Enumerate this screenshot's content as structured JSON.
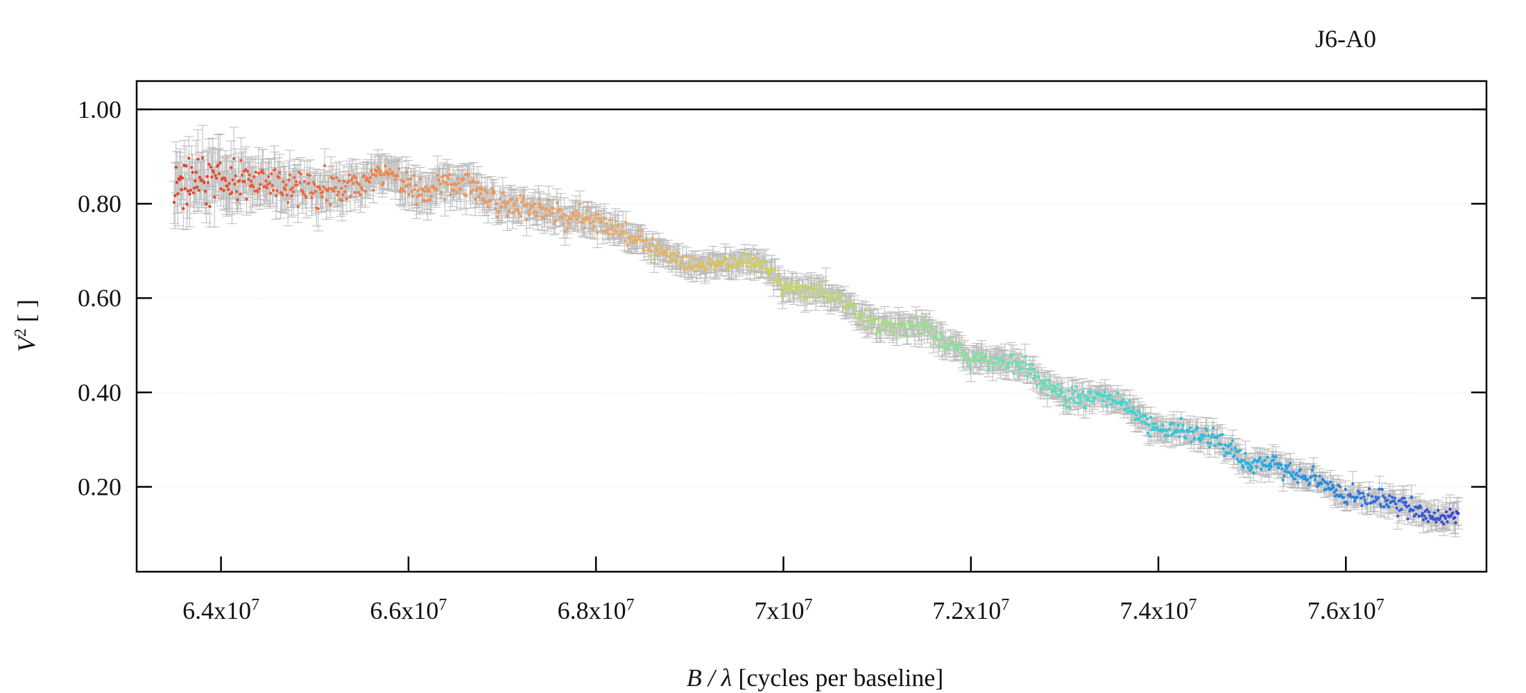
{
  "chart_data": {
    "type": "scatter",
    "title": "J6-A0",
    "xlabel_italic": "B / λ",
    "xlabel_rest": " [cycles per baseline]",
    "ylabel_italic": "V",
    "ylabel_sup": "2",
    "ylabel_rest": " [ ]",
    "xlim": [
      63100000,
      77500000
    ],
    "ylim": [
      0.02,
      1.06
    ],
    "reference_line": 1.0,
    "yticks": [
      {
        "value": 0.2,
        "label": "0.20"
      },
      {
        "value": 0.4,
        "label": "0.40"
      },
      {
        "value": 0.6,
        "label": "0.60"
      },
      {
        "value": 0.8,
        "label": "0.80"
      },
      {
        "value": 1.0,
        "label": "1.00"
      }
    ],
    "xticks": [
      {
        "value": 64000000,
        "base": "6.4x10",
        "exp": "7"
      },
      {
        "value": 66000000,
        "base": "6.6x10",
        "exp": "7"
      },
      {
        "value": 68000000,
        "base": "6.8x10",
        "exp": "7"
      },
      {
        "value": 70000000,
        "base": "7x10",
        "exp": "7"
      },
      {
        "value": 72000000,
        "base": "7.2x10",
        "exp": "7"
      },
      {
        "value": 74000000,
        "base": "7.4x10",
        "exp": "7"
      },
      {
        "value": 76000000,
        "base": "7.6x10",
        "exp": "7"
      }
    ],
    "grid": "horizontal-dotted",
    "errorbar_color": "#b9b9b9",
    "series_trend": [
      {
        "x": 63500000,
        "y": 0.84,
        "err": 0.05
      },
      {
        "x": 64000000,
        "y": 0.85,
        "err": 0.05
      },
      {
        "x": 64500000,
        "y": 0.84,
        "err": 0.04
      },
      {
        "x": 65000000,
        "y": 0.83,
        "err": 0.035
      },
      {
        "x": 65500000,
        "y": 0.84,
        "err": 0.03
      },
      {
        "x": 65800000,
        "y": 0.87,
        "err": 0.03
      },
      {
        "x": 66100000,
        "y": 0.82,
        "err": 0.03
      },
      {
        "x": 66500000,
        "y": 0.85,
        "err": 0.03
      },
      {
        "x": 67000000,
        "y": 0.8,
        "err": 0.025
      },
      {
        "x": 67500000,
        "y": 0.78,
        "err": 0.025
      },
      {
        "x": 68000000,
        "y": 0.76,
        "err": 0.025
      },
      {
        "x": 68500000,
        "y": 0.72,
        "err": 0.02
      },
      {
        "x": 69000000,
        "y": 0.67,
        "err": 0.02
      },
      {
        "x": 69500000,
        "y": 0.68,
        "err": 0.02
      },
      {
        "x": 69800000,
        "y": 0.67,
        "err": 0.02
      },
      {
        "x": 70000000,
        "y": 0.62,
        "err": 0.02
      },
      {
        "x": 70500000,
        "y": 0.61,
        "err": 0.02
      },
      {
        "x": 71000000,
        "y": 0.54,
        "err": 0.02
      },
      {
        "x": 71500000,
        "y": 0.54,
        "err": 0.02
      },
      {
        "x": 72000000,
        "y": 0.47,
        "err": 0.02
      },
      {
        "x": 72500000,
        "y": 0.46,
        "err": 0.02
      },
      {
        "x": 73000000,
        "y": 0.39,
        "err": 0.02
      },
      {
        "x": 73500000,
        "y": 0.39,
        "err": 0.02
      },
      {
        "x": 74000000,
        "y": 0.32,
        "err": 0.02
      },
      {
        "x": 74500000,
        "y": 0.31,
        "err": 0.02
      },
      {
        "x": 75000000,
        "y": 0.25,
        "err": 0.02
      },
      {
        "x": 75500000,
        "y": 0.23,
        "err": 0.02
      },
      {
        "x": 76000000,
        "y": 0.18,
        "err": 0.02
      },
      {
        "x": 76500000,
        "y": 0.17,
        "err": 0.02
      },
      {
        "x": 77000000,
        "y": 0.13,
        "err": 0.02
      },
      {
        "x": 77200000,
        "y": 0.14,
        "err": 0.025
      }
    ],
    "point_count": 1400,
    "colormap": "red-orange-yellow-green-cyan-blue by x"
  }
}
